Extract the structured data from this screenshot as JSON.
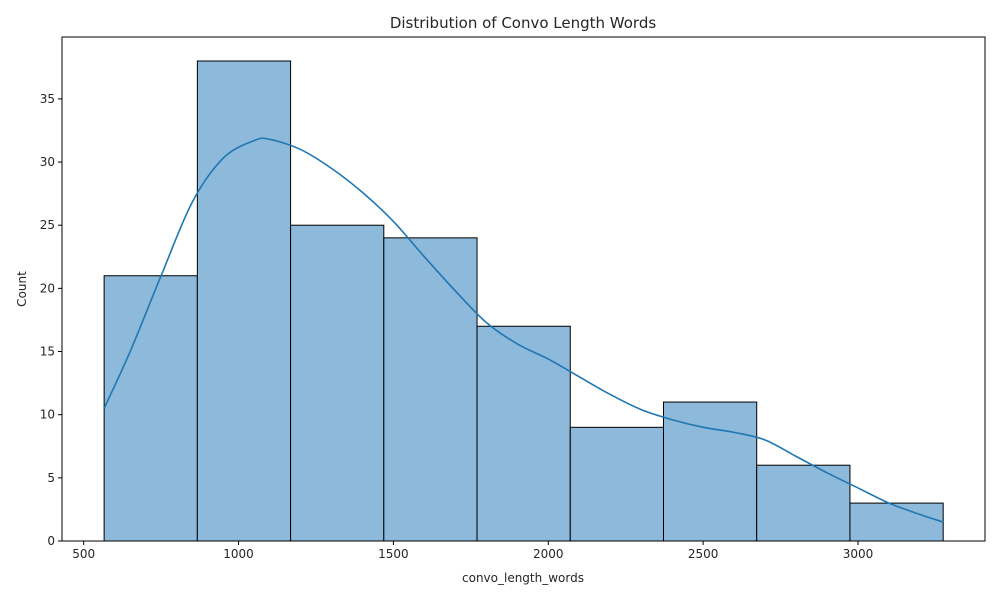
{
  "chart_data": {
    "type": "bar",
    "title": "Distribution of Convo Length Words",
    "xlabel": "convo_length_words",
    "ylabel": "Count",
    "xlim": [
      430,
      3410
    ],
    "ylim": [
      0,
      39.9
    ],
    "grid": false,
    "x_ticks": [
      500,
      1000,
      1500,
      2000,
      2500,
      3000
    ],
    "y_ticks": [
      0,
      5,
      10,
      15,
      20,
      25,
      30,
      35
    ],
    "bins": [
      {
        "start": 566,
        "end": 867,
        "count": 21
      },
      {
        "start": 867,
        "end": 1168,
        "count": 38
      },
      {
        "start": 1168,
        "end": 1469,
        "count": 25
      },
      {
        "start": 1469,
        "end": 1770,
        "count": 24
      },
      {
        "start": 1770,
        "end": 2071,
        "count": 17
      },
      {
        "start": 2071,
        "end": 2372,
        "count": 9
      },
      {
        "start": 2372,
        "end": 2673,
        "count": 11
      },
      {
        "start": 2673,
        "end": 2974,
        "count": 6
      },
      {
        "start": 2974,
        "end": 3275,
        "count": 3
      }
    ],
    "kde": {
      "x": [
        566,
        650,
        750,
        850,
        950,
        1050,
        1100,
        1200,
        1300,
        1400,
        1500,
        1600,
        1700,
        1800,
        1900,
        2000,
        2100,
        2200,
        2300,
        2400,
        2500,
        2600,
        2700,
        2800,
        2900,
        3000,
        3100,
        3200,
        3275
      ],
      "y": [
        10.5,
        15.0,
        21.0,
        26.8,
        30.3,
        31.7,
        31.8,
        31.0,
        29.5,
        27.6,
        25.3,
        22.5,
        19.8,
        17.3,
        15.6,
        14.4,
        13.0,
        11.6,
        10.4,
        9.6,
        9.0,
        8.6,
        8.0,
        6.7,
        5.4,
        4.2,
        3.0,
        2.1,
        1.5
      ]
    },
    "colors": {
      "bar_fill": "#8db9da",
      "bar_edge": "#000000",
      "kde_line": "#1f77b4"
    }
  }
}
